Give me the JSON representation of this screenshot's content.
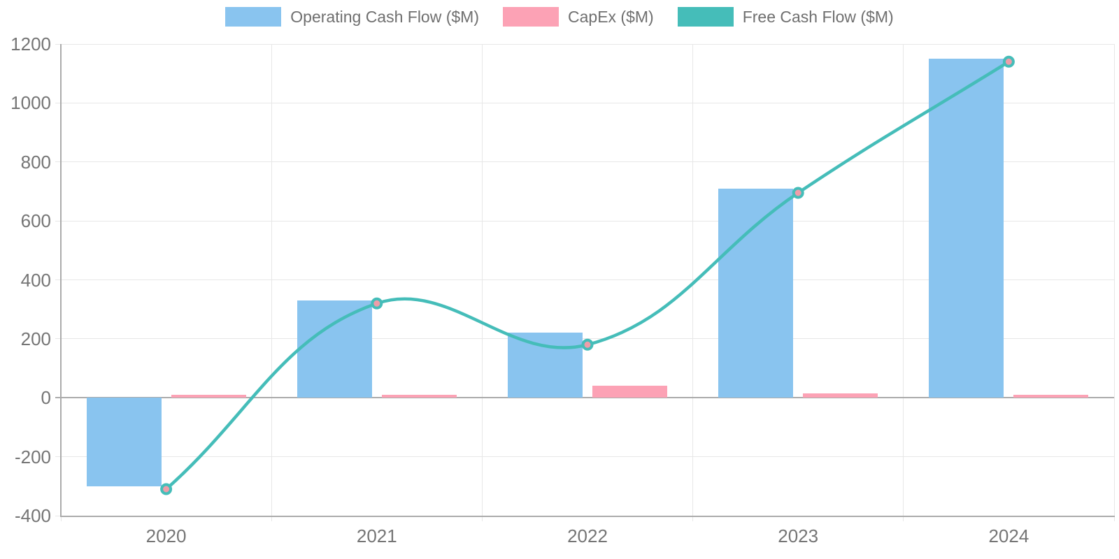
{
  "chart_data": {
    "type": "combo-bar-line",
    "categories": [
      "2020",
      "2021",
      "2022",
      "2023",
      "2024"
    ],
    "series": [
      {
        "name": "Operating Cash Flow ($M)",
        "type": "bar",
        "color": "#89C4EF",
        "values": [
          -300,
          330,
          220,
          710,
          1150
        ]
      },
      {
        "name": "CapEx ($M)",
        "type": "bar",
        "color": "#FCA2B5",
        "values": [
          10,
          10,
          40,
          15,
          10
        ]
      },
      {
        "name": "Free Cash Flow ($M)",
        "type": "line",
        "color": "#45BDB9",
        "point_fill": "#EF9DA9",
        "values": [
          -310,
          320,
          180,
          695,
          1140
        ]
      }
    ],
    "title": "",
    "xlabel": "",
    "ylabel": "",
    "ylim": [
      -400,
      1200
    ],
    "yticks": [
      -400,
      -200,
      0,
      200,
      400,
      600,
      800,
      1000,
      1200
    ],
    "grid": true,
    "legend_position": "top",
    "line_tension": 0.4
  },
  "palette": {
    "grid": "#E7E7E7",
    "zero_line": "#ABABAB",
    "axis_line": "#ABABAB",
    "tick_text": "#757575",
    "legend_text": "#6F6F6F",
    "background": "#FFFFFF"
  }
}
